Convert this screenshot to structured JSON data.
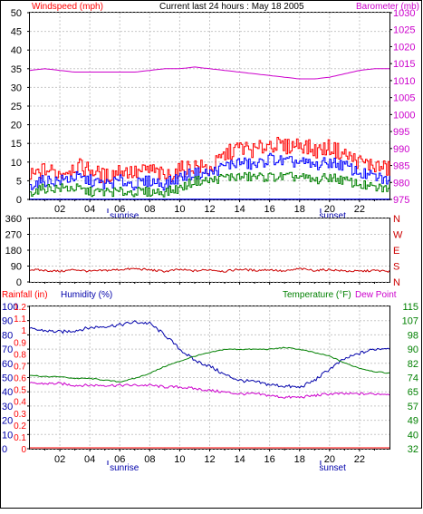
{
  "chart_data": [
    {
      "type": "line",
      "title": "Current last 24 hours : May 18 2005",
      "ylabel_left": "Windspeed (mph)",
      "ylabel_right": "Barometer (mb)",
      "ylim_left": [
        0,
        50
      ],
      "ylim_right": [
        975,
        1030
      ],
      "yticks_left": [
        "0",
        "5",
        "10",
        "15",
        "20",
        "25",
        "30",
        "35",
        "40",
        "45",
        "50"
      ],
      "yticks_right": [
        "975",
        "980",
        "985",
        "990",
        "995",
        "1000",
        "1005",
        "1010",
        "1015",
        "1020",
        "1025",
        "1030"
      ],
      "x_hours": [
        0,
        1,
        2,
        3,
        4,
        5,
        6,
        7,
        8,
        9,
        10,
        11,
        12,
        13,
        14,
        15,
        16,
        17,
        18,
        19,
        20,
        21,
        22,
        23,
        24
      ],
      "series": [
        {
          "name": "Windspeed (mph)",
          "color": "#ff0000",
          "axis": "left",
          "values": [
            6,
            8,
            7,
            9,
            8,
            6,
            8,
            7,
            8,
            6,
            8,
            9,
            8,
            12,
            14,
            13,
            15,
            14,
            15,
            13,
            14,
            12,
            10,
            9,
            8
          ]
        },
        {
          "name": "",
          "color": "#0000ff",
          "axis": "left",
          "values": [
            4,
            5,
            5,
            6,
            5,
            4,
            5,
            4,
            5,
            4,
            6,
            7,
            7,
            9,
            10,
            9,
            11,
            10,
            10,
            9,
            10,
            9,
            7,
            6,
            5
          ]
        },
        {
          "name": "",
          "color": "#008000",
          "axis": "left",
          "values": [
            2,
            3,
            3,
            3,
            2,
            2,
            2,
            2,
            2,
            2,
            3,
            5,
            5,
            6,
            6,
            6,
            6,
            6,
            6,
            5,
            6,
            5,
            4,
            3,
            3
          ]
        },
        {
          "name": "Barometer (mb)",
          "color": "#cc00cc",
          "axis": "right",
          "values": [
            1013,
            1013.5,
            1013,
            1012.5,
            1012.5,
            1012.5,
            1012.5,
            1012.5,
            1013,
            1013.5,
            1013.5,
            1014,
            1013.5,
            1013,
            1012.5,
            1012,
            1011.5,
            1011,
            1010.5,
            1010.5,
            1011,
            1012,
            1013,
            1013.5,
            1013.5
          ]
        }
      ]
    },
    {
      "type": "line",
      "ylim": [
        0,
        360
      ],
      "yticks_left": [
        "0",
        "90",
        "180",
        "270",
        "360"
      ],
      "yticks_right": [
        "N",
        "S",
        "E",
        "W",
        "N"
      ],
      "series": [
        {
          "name": "",
          "color": "#cc0000",
          "values": [
            70,
            65,
            60,
            70,
            60,
            65,
            70,
            75,
            68,
            60,
            70,
            62,
            70,
            60,
            72,
            65,
            70,
            60,
            75,
            65,
            70,
            62,
            60,
            65,
            60
          ]
        }
      ]
    },
    {
      "type": "line",
      "ylabel_rain": "Rainfall (in)",
      "ylabel_humidity": "Humidity (%)",
      "ylabel_temp": "Temperature (°F)",
      "ylabel_dew": "Dew Point",
      "yticks_rain": [
        "0",
        "0.1",
        "0.2",
        "0.3",
        "0.4",
        "0.5",
        "0.6",
        "0.7",
        "0.8",
        "0.9",
        "1",
        "1.1",
        "1.2"
      ],
      "yticks_humidity": [
        "0",
        "10",
        "20",
        "30",
        "40",
        "50",
        "60",
        "70",
        "80",
        "90",
        "100"
      ],
      "yticks_temp": [
        "32",
        "40",
        "49",
        "57",
        "65",
        "74",
        "82",
        "90",
        "98",
        "107",
        "115"
      ],
      "ylim_humidity": [
        0,
        100
      ],
      "ylim_temp": [
        32,
        115
      ],
      "series": [
        {
          "name": "Humidity (%)",
          "color": "#0000aa",
          "axis": "humidity",
          "values": [
            84,
            83,
            82,
            83,
            85,
            86,
            87,
            89,
            88,
            80,
            70,
            62,
            58,
            52,
            48,
            47,
            45,
            44,
            43,
            48,
            56,
            63,
            67,
            70,
            71
          ]
        },
        {
          "name": "Temperature (°F)",
          "color": "#008000",
          "axis": "temp",
          "values": [
            75,
            74,
            74,
            73,
            73,
            72,
            71,
            73,
            76,
            80,
            83,
            86,
            88,
            90,
            90,
            90,
            90,
            91,
            90,
            88,
            86,
            82,
            79,
            77,
            76
          ]
        },
        {
          "name": "Dew Point",
          "color": "#cc00cc",
          "axis": "temp",
          "values": [
            70,
            70,
            70,
            69,
            69,
            69,
            69,
            69,
            69,
            68,
            68,
            67,
            66,
            65,
            64,
            64,
            63,
            62,
            62,
            63,
            64,
            64,
            64,
            64,
            64
          ]
        },
        {
          "name": "Rainfall (in)",
          "color": "#ff0000",
          "axis": "rain",
          "values": [
            0,
            0,
            0,
            0,
            0,
            0,
            0,
            0,
            0,
            0,
            0,
            0,
            0,
            0,
            0,
            0,
            0,
            0,
            0,
            0,
            0,
            0,
            0,
            0,
            0
          ]
        }
      ]
    }
  ],
  "x_tick_labels": [
    "02",
    "04",
    "06",
    "08",
    "10",
    "12",
    "14",
    "16",
    "18",
    "20",
    "22"
  ],
  "sunrise_label": "sunrise",
  "sunset_label": "sunset"
}
